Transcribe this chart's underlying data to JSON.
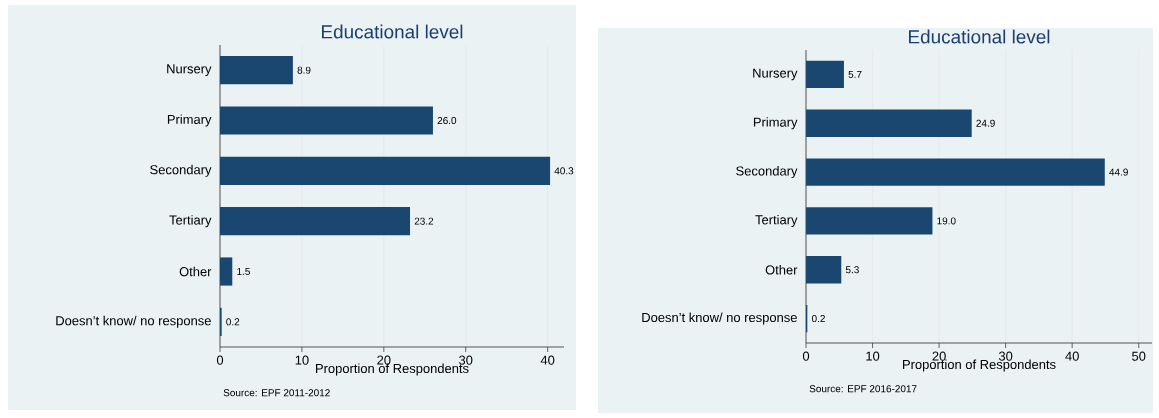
{
  "chart_data": [
    {
      "type": "bar",
      "orientation": "horizontal",
      "title": "Educational level",
      "xlabel": "Proportion of Respondents",
      "categories": [
        "Nursery",
        "Primary",
        "Secondary",
        "Tertiary",
        "Other",
        "Doesn’t know/ no response"
      ],
      "values": [
        8.9,
        26.0,
        40.3,
        23.2,
        1.5,
        0.2
      ],
      "color": "#1a476f",
      "value_labels": [
        "8.9",
        "26.0",
        "40.3",
        "23.2",
        "1.5",
        "0.2"
      ],
      "xlim": [
        0,
        42
      ],
      "xticks": [
        0,
        10,
        20,
        30,
        40
      ],
      "grid": "x",
      "annotations": [
        "Source: EPF 2011-2012"
      ]
    },
    {
      "type": "bar",
      "orientation": "horizontal",
      "title": "Educational level",
      "xlabel": "Proportion of Respondents",
      "categories": [
        "Nursery",
        "Primary",
        "Secondary",
        "Tertiary",
        "Other",
        "Doesn’t know/ no response"
      ],
      "values": [
        5.7,
        24.9,
        44.9,
        19.0,
        5.3,
        0.2
      ],
      "color": "#1a476f",
      "value_labels": [
        "5.7",
        "24.9",
        "44.9",
        "19.0",
        "5.3",
        "0.2"
      ],
      "xlim": [
        0,
        52
      ],
      "xticks": [
        0,
        10,
        20,
        30,
        40,
        50
      ],
      "grid": "x",
      "annotations": [
        "Source: EPF 2016-2017"
      ]
    }
  ]
}
